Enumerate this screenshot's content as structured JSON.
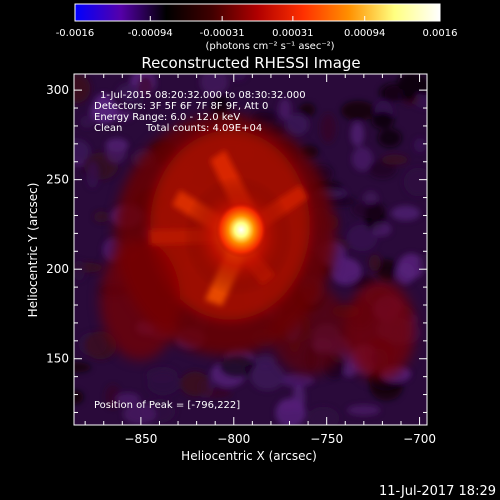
{
  "colorbar": {
    "tick_labels": [
      "-0.0016",
      "-0.00094",
      "-0.00031",
      "0.00031",
      "0.00094",
      "0.0016"
    ],
    "tick_values": [
      -0.0016,
      -0.00094,
      -0.00031,
      0.00031,
      0.00094,
      0.0016
    ],
    "range": [
      -0.0016,
      0.0016
    ],
    "units_label": "(photons cm⁻² s⁻¹ asec⁻²)",
    "colors": [
      "#0000ff",
      "#5500aa",
      "#000000",
      "#400000",
      "#b00000",
      "#ff3000",
      "#ff9000",
      "#ffff80",
      "#ffffff"
    ]
  },
  "title": "Reconstructed RHESSI Image",
  "info": {
    "time_range": "1-Jul-2015 08:20:32.000 to 08:30:32.000",
    "detectors": "Detectors: 3F 5F 6F 7F 8F 9F, Att 0",
    "energy_range": "Energy Range: 6.0 - 12.0 keV",
    "clean_label": "Clean",
    "total_counts": "Total counts: 4.09E+04"
  },
  "peak_label": "Position of Peak = [-796,222]",
  "axes": {
    "xlabel": "Heliocentric X (arcsec)",
    "ylabel": "Heliocentric Y (arcsec)",
    "x_ticks": [
      -850,
      -800,
      -750,
      -700
    ],
    "x_tick_labels": [
      "−850",
      "−800",
      "−750",
      "−700"
    ],
    "y_ticks": [
      150,
      200,
      250,
      300
    ],
    "y_tick_labels": [
      "150",
      "200",
      "250",
      "300"
    ],
    "xlim": [
      -886,
      -696
    ],
    "ylim": [
      113,
      309
    ]
  },
  "image": {
    "peak": [
      -796,
      222
    ],
    "background_color": "#2a0a3a"
  },
  "footer_timestamp": "11-Jul-2017 18:29"
}
